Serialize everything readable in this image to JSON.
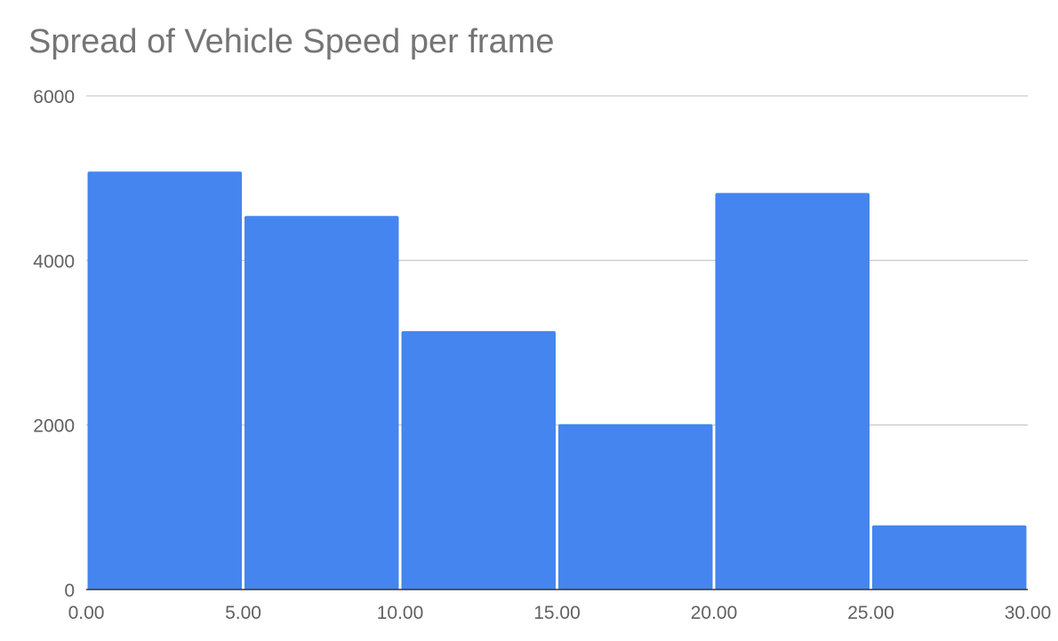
{
  "chart_data": {
    "type": "bar",
    "title": "Spread of Vehicle Speed per frame",
    "xlabel": "",
    "ylabel": "",
    "bins": [
      {
        "start": 0,
        "end": 5,
        "value": 5080
      },
      {
        "start": 5,
        "end": 10,
        "value": 4540
      },
      {
        "start": 10,
        "end": 15,
        "value": 3140
      },
      {
        "start": 15,
        "end": 20,
        "value": 2010
      },
      {
        "start": 20,
        "end": 25,
        "value": 4820
      },
      {
        "start": 25,
        "end": 30,
        "value": 780
      }
    ],
    "xlim": [
      0,
      30
    ],
    "ylim": [
      0,
      6000
    ],
    "x_ticks": [
      "0.00",
      "5.00",
      "10.00",
      "15.00",
      "20.00",
      "25.00",
      "30.00"
    ],
    "y_ticks": [
      "0",
      "2000",
      "4000",
      "6000"
    ],
    "grid": true,
    "legend": "none",
    "colors": {
      "bar": "#4485ef",
      "grid": "#cccccc",
      "axis": "#333333",
      "text": "#616161",
      "title": "#757575"
    }
  }
}
